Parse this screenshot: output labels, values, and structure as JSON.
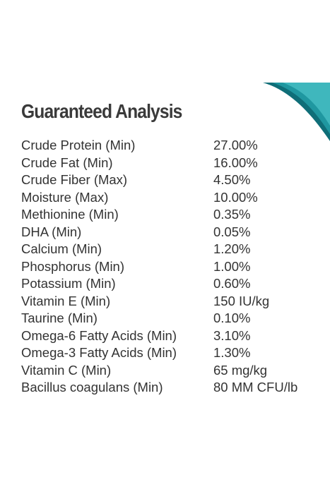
{
  "header": {
    "title": "Guaranteed Analysis"
  },
  "table": {
    "rows": [
      [
        "Crude Protein (Min)",
        "27.00%"
      ],
      [
        "Crude Fat (Min)",
        "16.00%"
      ],
      [
        "Crude Fiber (Max)",
        "4.50%"
      ],
      [
        "Moisture (Max)",
        "10.00%"
      ],
      [
        "Methionine (Min)",
        "0.35%"
      ],
      [
        "DHA (Min)",
        "0.05%"
      ],
      [
        "Calcium (Min)",
        "1.20%"
      ],
      [
        "Phosphorus (Min)",
        "1.00%"
      ],
      [
        "Potassium (Min)",
        "0.60%"
      ],
      [
        "Vitamin E (Min)",
        "150 IU/kg"
      ],
      [
        "Taurine (Min)",
        "0.10%"
      ],
      [
        "Omega-6 Fatty Acids (Min)",
        "3.10%"
      ],
      [
        "Omega-3 Fatty Acids (Min)",
        "1.30%"
      ],
      [
        "Vitamin C (Min)",
        "65 mg/kg"
      ],
      [
        "Bacillus coagulans (Min)",
        "80 MM CFU/lb"
      ]
    ]
  }
}
